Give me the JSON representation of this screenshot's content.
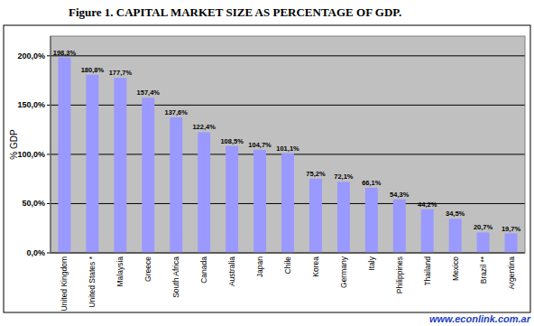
{
  "chart_data": {
    "type": "bar",
    "title": "Figure 1.   CAPITAL MARKET SIZE AS PERCENTAGE OF GDP.",
    "y_label": "% GDP",
    "annotation": "www.econlink.com.ar",
    "categories": [
      "United Kingdom",
      "United States *",
      "Malaysia",
      "Greece",
      "South Africa",
      "Canada",
      "Australia",
      "Japan",
      "Chile",
      "Korea",
      "Germany",
      "Italy",
      "Philippines",
      "Thailand",
      "Mexico",
      "Brazil **",
      "Argentina"
    ],
    "values": [
      198.3,
      180.8,
      177.7,
      157.4,
      137.6,
      122.4,
      108.5,
      104.7,
      101.1,
      75.2,
      72.1,
      66.1,
      54.3,
      44.2,
      34.5,
      20.7,
      19.7
    ],
    "value_labels": [
      "198,3%",
      "180,8%",
      "177,7%",
      "157,4%",
      "137,6%",
      "122,4%",
      "108,5%",
      "104,7%",
      "101,1%",
      "75,2%",
      "72,1%",
      "66,1%",
      "54,3%",
      "44,2%",
      "34,5%",
      "20,7%",
      "19,7%"
    ],
    "color": "#9999ff",
    "ylim": [
      0,
      220
    ],
    "yticks": [
      {
        "value": 0,
        "label": "0,0%"
      },
      {
        "value": 50,
        "label": "50,0%"
      },
      {
        "value": 100,
        "label": "100,0%"
      },
      {
        "value": 150,
        "label": "150,0%"
      },
      {
        "value": 200,
        "label": "200,0%"
      }
    ],
    "grid": true,
    "data_labels": true
  }
}
